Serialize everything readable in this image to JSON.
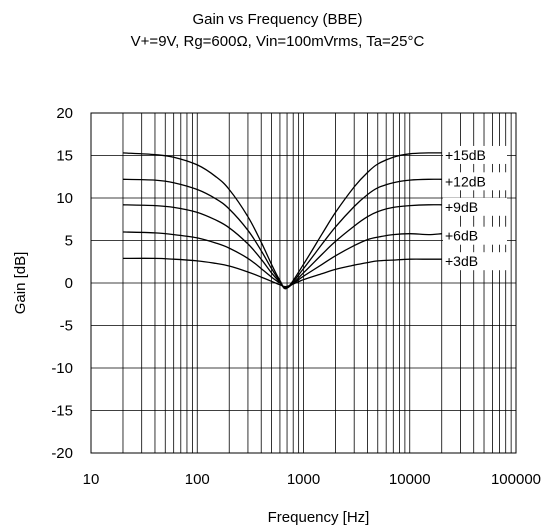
{
  "title": "Gain vs Frequency (BBE)",
  "subtitle": "V+=9V, Rg=600Ω, Vin=100mVrms, Ta=25°C",
  "chart_data": {
    "type": "line",
    "xlabel": "Frequency [Hz]",
    "ylabel": "Gain [dB]",
    "x_scale": "log",
    "xlim": [
      10,
      100000
    ],
    "ylim": [
      -20,
      20
    ],
    "x_ticks": [
      "10",
      "100",
      "1000",
      "10000",
      "100000"
    ],
    "y_ticks": [
      "20",
      "15",
      "10",
      "5",
      "0",
      "-5",
      "-10",
      "-15",
      "-20"
    ],
    "grid": true,
    "legend": "none",
    "series": [
      {
        "name": "+15dB",
        "x": [
          20,
          40,
          60,
          100,
          150,
          200,
          300,
          400,
          500,
          600,
          700,
          1000,
          1500,
          2000,
          3000,
          4000,
          5000,
          7000,
          10000,
          15000,
          20000
        ],
        "y": [
          15.3,
          15.1,
          14.8,
          13.9,
          12.5,
          11.0,
          7.8,
          4.8,
          2.2,
          0.3,
          -0.6,
          2.2,
          5.8,
          8.3,
          11.3,
          13.0,
          14.0,
          14.8,
          15.2,
          15.3,
          15.3
        ]
      },
      {
        "name": "+12dB",
        "x": [
          20,
          40,
          60,
          100,
          150,
          200,
          300,
          400,
          500,
          600,
          700,
          1000,
          1500,
          2000,
          3000,
          4000,
          5000,
          7000,
          10000,
          15000,
          20000
        ],
        "y": [
          12.2,
          12.1,
          11.8,
          11.0,
          9.9,
          8.7,
          6.2,
          3.8,
          1.7,
          0.2,
          -0.6,
          1.7,
          4.6,
          6.6,
          9.0,
          10.4,
          11.2,
          11.8,
          12.1,
          12.2,
          12.2
        ]
      },
      {
        "name": "+9dB",
        "x": [
          20,
          40,
          60,
          100,
          150,
          200,
          300,
          400,
          500,
          600,
          700,
          1000,
          1500,
          2000,
          3000,
          4000,
          5000,
          7000,
          10000,
          15000,
          20000
        ],
        "y": [
          9.2,
          9.1,
          8.9,
          8.3,
          7.4,
          6.5,
          4.6,
          2.8,
          1.2,
          0.1,
          -0.6,
          1.2,
          3.4,
          4.9,
          6.7,
          7.8,
          8.4,
          8.9,
          9.1,
          9.2,
          9.2
        ]
      },
      {
        "name": "+6dB",
        "x": [
          20,
          40,
          60,
          100,
          150,
          200,
          300,
          400,
          500,
          600,
          700,
          1000,
          1500,
          2000,
          3000,
          4000,
          5000,
          7000,
          10000,
          15000,
          20000
        ],
        "y": [
          6.0,
          5.9,
          5.7,
          5.3,
          4.7,
          4.1,
          2.9,
          1.7,
          0.7,
          0.0,
          -0.5,
          0.8,
          2.2,
          3.2,
          4.4,
          5.1,
          5.4,
          5.7,
          5.8,
          5.7,
          5.8
        ]
      },
      {
        "name": "+3dB",
        "x": [
          20,
          40,
          60,
          100,
          150,
          200,
          300,
          400,
          500,
          600,
          700,
          1000,
          1500,
          2000,
          3000,
          4000,
          5000,
          7000,
          10000,
          15000,
          20000
        ],
        "y": [
          2.9,
          2.9,
          2.8,
          2.6,
          2.3,
          2.0,
          1.3,
          0.7,
          0.2,
          -0.2,
          -0.4,
          0.4,
          1.1,
          1.6,
          2.1,
          2.4,
          2.6,
          2.7,
          2.8,
          2.8,
          2.8
        ]
      }
    ]
  }
}
